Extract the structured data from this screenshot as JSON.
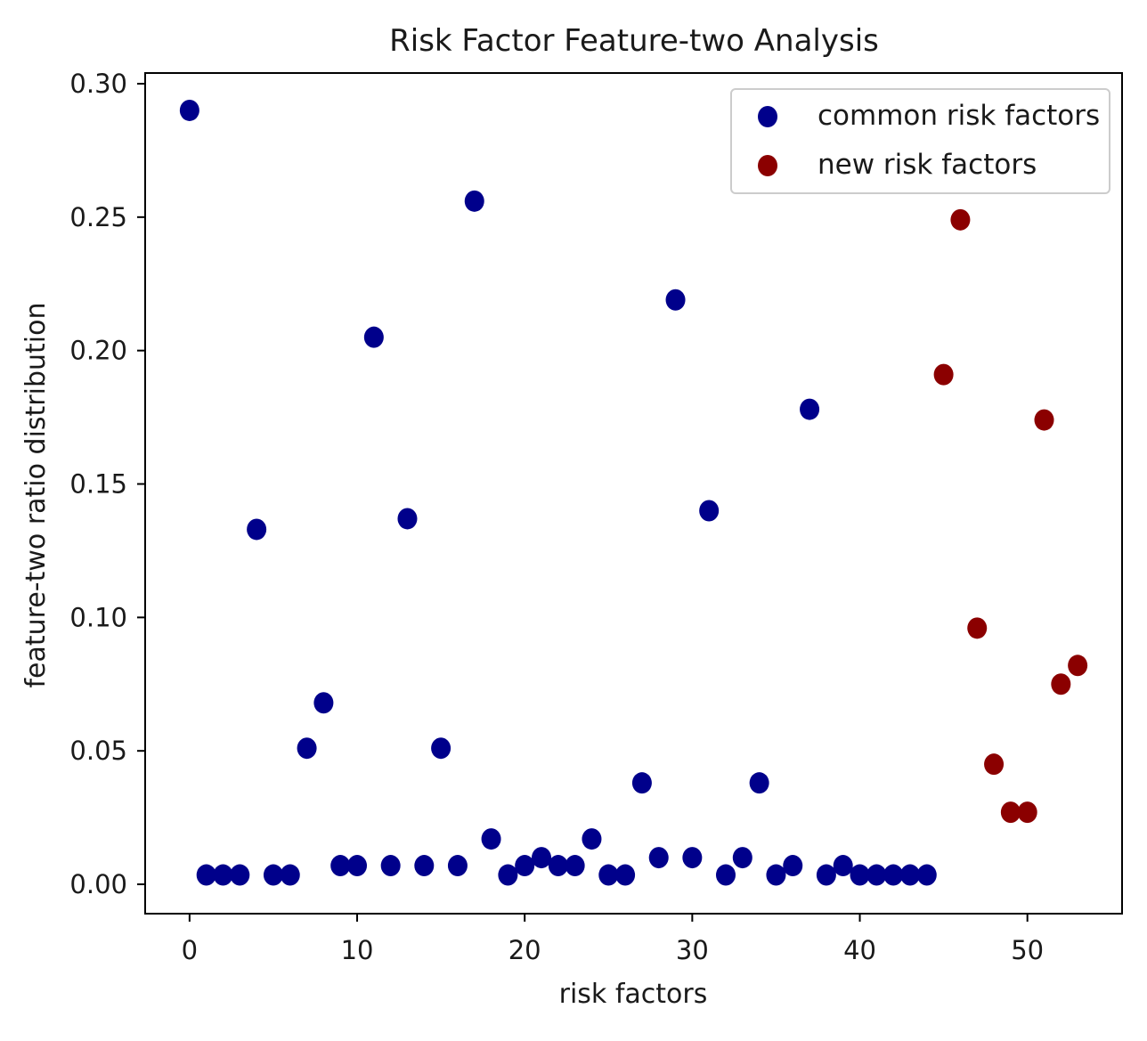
{
  "chart_data": {
    "type": "scatter",
    "title": "Risk Factor Feature-two Analysis",
    "xlabel": "risk factors",
    "ylabel": "feature-two ratio distribution",
    "xlim": [
      -2.65,
      55.65
    ],
    "ylim": [
      -0.011,
      0.304
    ],
    "xticks": [
      0,
      10,
      20,
      30,
      40,
      50
    ],
    "xtick_labels": [
      "0",
      "10",
      "20",
      "30",
      "40",
      "50"
    ],
    "yticks": [
      0.0,
      0.05,
      0.1,
      0.15,
      0.2,
      0.25,
      0.3
    ],
    "ytick_labels": [
      "0.00",
      "0.05",
      "0.10",
      "0.15",
      "0.20",
      "0.25",
      "0.30"
    ],
    "grid": false,
    "legend_position": "top-right",
    "series": [
      {
        "name": "common risk factors",
        "color": "#00008b",
        "x": [
          0,
          1,
          2,
          3,
          4,
          5,
          6,
          7,
          8,
          9,
          10,
          11,
          12,
          13,
          14,
          15,
          16,
          17,
          18,
          19,
          20,
          21,
          22,
          23,
          24,
          25,
          26,
          27,
          28,
          29,
          30,
          31,
          32,
          33,
          34,
          35,
          36,
          37,
          38,
          39,
          40,
          41,
          42,
          43,
          44
        ],
        "y": [
          0.29,
          0.0035,
          0.0035,
          0.0035,
          0.133,
          0.0035,
          0.0035,
          0.051,
          0.068,
          0.007,
          0.007,
          0.205,
          0.007,
          0.137,
          0.007,
          0.051,
          0.007,
          0.256,
          0.017,
          0.0035,
          0.007,
          0.01,
          0.007,
          0.007,
          0.017,
          0.0035,
          0.0035,
          0.038,
          0.01,
          0.219,
          0.01,
          0.14,
          0.0035,
          0.01,
          0.038,
          0.0035,
          0.007,
          0.178,
          0.0035,
          0.007,
          0.0035,
          0.0035,
          0.0035,
          0.0035,
          0.0035
        ]
      },
      {
        "name": "new risk factors",
        "color": "#8b0000",
        "x": [
          45,
          46,
          47,
          48,
          49,
          50,
          51,
          52,
          53
        ],
        "y": [
          0.191,
          0.249,
          0.096,
          0.045,
          0.027,
          0.027,
          0.174,
          0.075,
          0.082
        ]
      }
    ]
  }
}
